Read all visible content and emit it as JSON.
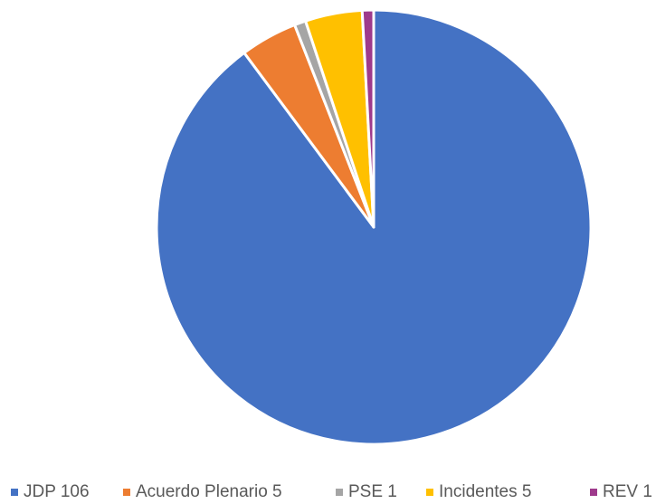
{
  "chart_data": {
    "type": "pie",
    "title": "",
    "categories": [
      "JDP",
      "Acuerdo Plenario",
      "PSE",
      "Incidentes",
      "REV"
    ],
    "values": [
      106,
      5,
      1,
      5,
      1
    ],
    "colors": [
      "#4472C4",
      "#ED7D31",
      "#A5A5A5",
      "#FFC000",
      "#9E3A8C"
    ],
    "legend": {
      "position": "bottom",
      "entries": [
        "JDP 106",
        "Acuerdo Plenario 5",
        "PSE 1",
        "Incidentes 5",
        "REV 1"
      ]
    },
    "start_angle": "12 o'clock",
    "direction": "clockwise",
    "slice_borders": "white"
  }
}
